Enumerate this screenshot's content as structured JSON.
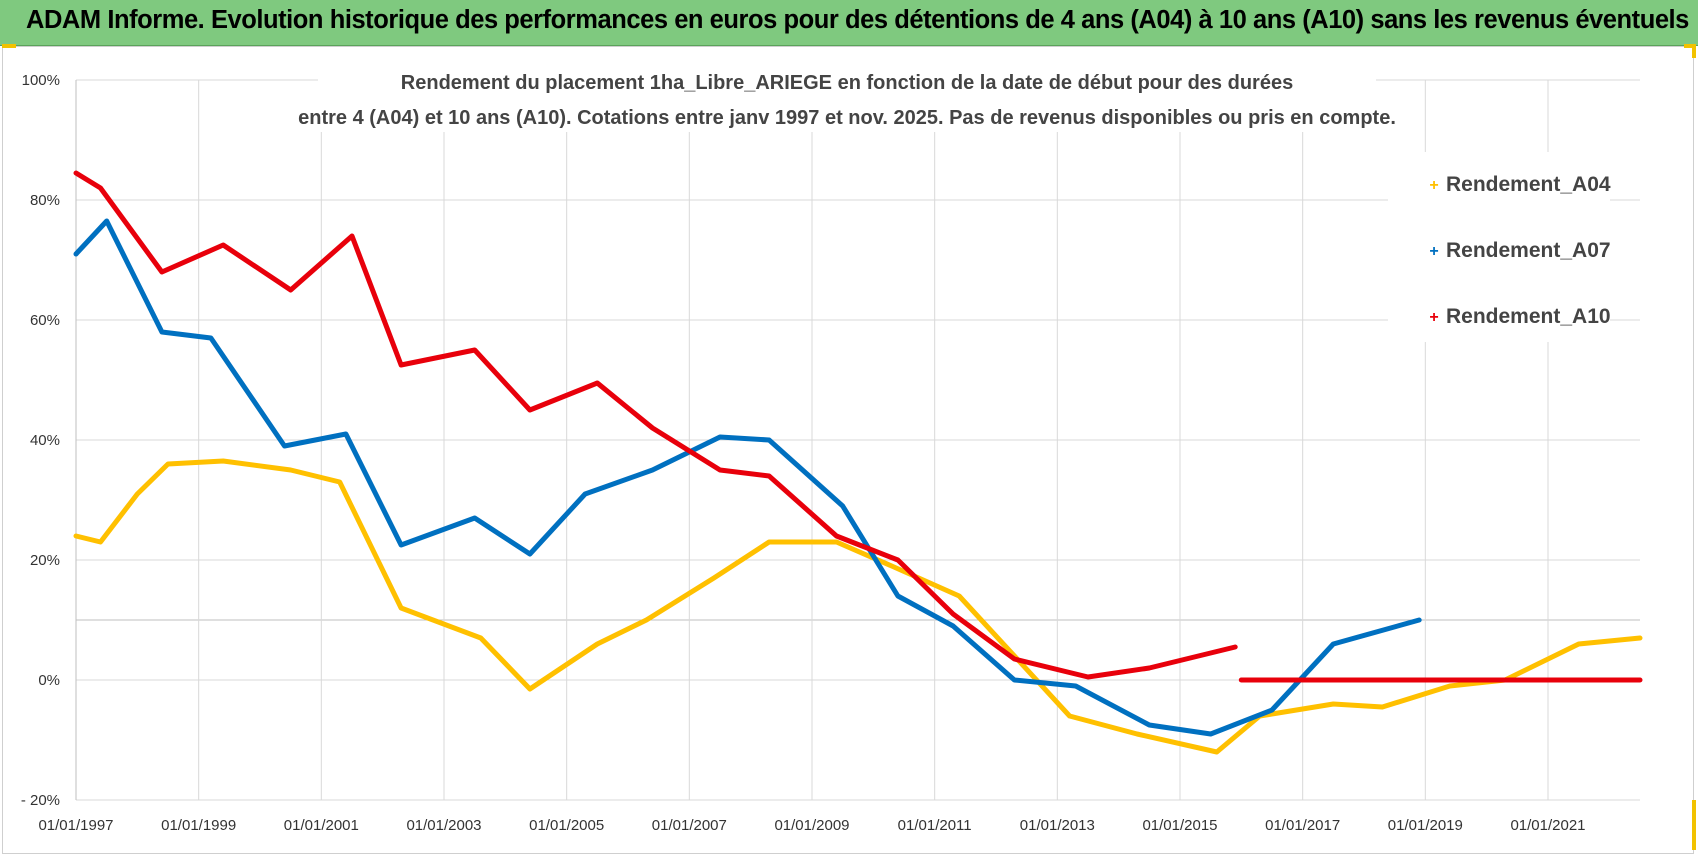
{
  "banner": {
    "text": "ADAM Informe. Evolution historique des performances en euros pour des détentions de 4 ans (A04) à 10 ans (A10) sans les revenus éventuels"
  },
  "colors": {
    "banner_bg": "#7fc97f",
    "A04": "#ffc000",
    "A07": "#0070c0",
    "A10": "#e8000b",
    "grid": "#d9d9d9"
  },
  "chart_data": {
    "type": "line",
    "title_lines": [
      "Rendement du placement 1ha_Libre_ARIEGE en fonction de la date de début pour des durées",
      "entre 4 (A04) et 10 ans (A10). Cotations entre janv 1997 et nov. 2025. Pas de revenus disponibles ou pris en compte."
    ],
    "xlabel": "",
    "ylabel": "",
    "xlim": [
      1997.0,
      2022.5
    ],
    "ylim": [
      -20,
      100
    ],
    "y_ticks": [
      -20,
      0,
      20,
      40,
      60,
      80,
      100
    ],
    "y_tick_labels": [
      "- 20%",
      "0%",
      "20%",
      "40%",
      "60%",
      "80%",
      "100%"
    ],
    "x_ticks": [
      1997,
      1999,
      2001,
      2003,
      2005,
      2007,
      2009,
      2011,
      2013,
      2015,
      2017,
      2019,
      2021
    ],
    "x_tick_labels": [
      "01/01/1997",
      "01/01/1999",
      "01/01/2001",
      "01/01/2003",
      "01/01/2005",
      "01/01/2007",
      "01/01/2009",
      "01/01/2011",
      "01/01/2013",
      "01/01/2015",
      "01/01/2017",
      "01/01/2019",
      "01/01/2021"
    ],
    "legend_position": "right",
    "series": [
      {
        "name": "Rendement_A04",
        "key": "A04",
        "x": [
          1997.0,
          1997.4,
          1998.0,
          1998.5,
          1999.4,
          2000.5,
          2001.3,
          2002.3,
          2003.6,
          2004.4,
          2005.5,
          2006.3,
          2007.4,
          2008.3,
          2009.4,
          2010.3,
          2011.4,
          2012.3,
          2013.2,
          2014.3,
          2015.6,
          2016.3,
          2017.5,
          2018.3,
          2019.4,
          2020.3,
          2021.5,
          2022.5
        ],
        "y": [
          24,
          23,
          31,
          36,
          36.5,
          35,
          33,
          12,
          7,
          -1.5,
          6,
          10,
          17,
          23,
          23,
          19,
          14,
          4,
          -6,
          -9,
          -12,
          -6,
          -4,
          -4.5,
          -1,
          0,
          6,
          7
        ]
      },
      {
        "name": "Rendement_A07",
        "key": "A07",
        "x": [
          1997.0,
          1997.5,
          1998.4,
          1999.2,
          2000.4,
          2001.4,
          2002.3,
          2003.5,
          2004.4,
          2005.3,
          2006.4,
          2007.5,
          2008.3,
          2009.5,
          2010.4,
          2011.3,
          2012.3,
          2013.3,
          2014.5,
          2015.5,
          2016.5,
          2017.5,
          2018.9
        ],
        "y": [
          71,
          76.5,
          58,
          57,
          39,
          41,
          22.5,
          27,
          21,
          31,
          35,
          40.5,
          40,
          29,
          14,
          9,
          0,
          -1,
          -7.5,
          -9,
          -5,
          6,
          10
        ]
      },
      {
        "name": "Rendement_A10",
        "key": "A10",
        "x": [
          1997.0,
          1997.4,
          1998.4,
          1999.4,
          2000.5,
          2001.5,
          2002.3,
          2003.5,
          2004.4,
          2005.5,
          2006.4,
          2007.5,
          2008.3,
          2009.4,
          2010.4,
          2011.3,
          2012.3,
          2013.5,
          2014.5,
          2015.9
        ],
        "y": [
          84.5,
          82,
          68,
          72.5,
          65,
          74,
          52.5,
          55,
          45,
          49.5,
          42,
          35,
          34,
          24,
          20,
          11,
          3.5,
          0.5,
          2,
          5.5
        ],
        "x2": [
          2016.0,
          2017.0,
          2018.0,
          2019.0,
          2020.0,
          2021.0,
          2022.5
        ],
        "y2": [
          0,
          0,
          0,
          0,
          0,
          0,
          0
        ]
      }
    ]
  }
}
